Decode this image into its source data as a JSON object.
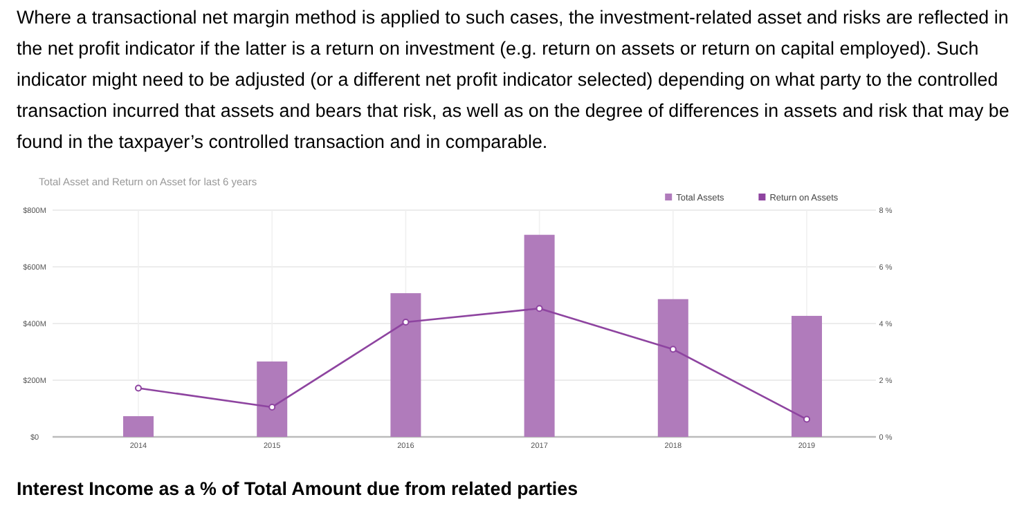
{
  "chart_data": {
    "type": "bar",
    "title": "Total Asset and Return on Asset  for last 6 years",
    "categories": [
      "2014",
      "2015",
      "2016",
      "2017",
      "2018",
      "2019"
    ],
    "series": [
      {
        "name": "Total Assets",
        "color": "#b07bbb",
        "values": [
          73,
          266,
          507,
          713,
          486,
          427
        ]
      },
      {
        "name": "Return on Assets",
        "type": "line",
        "axis": "y2",
        "color": "#8e44a0",
        "values": [
          1.72,
          1.05,
          4.05,
          4.53,
          3.09,
          0.62
        ]
      }
    ],
    "ylim": [
      0,
      800
    ],
    "yticks": [
      {
        "value": 0,
        "label": "$0"
      },
      {
        "value": 200,
        "label": "$200M"
      },
      {
        "value": 400,
        "label": "$400M"
      },
      {
        "value": 600,
        "label": "$600M"
      },
      {
        "value": 800,
        "label": "$800M"
      }
    ],
    "y2lim": [
      0,
      8
    ],
    "y2ticks": [
      {
        "value": 0,
        "label": "0 %"
      },
      {
        "value": 2,
        "label": "2 %"
      },
      {
        "value": 4,
        "label": "4 %"
      },
      {
        "value": 6,
        "label": "6 %"
      },
      {
        "value": 8,
        "label": "8 %"
      }
    ],
    "grid": true,
    "legend": "top right",
    "marker": "circle",
    "annotations": [
      "Where a transactional net margin method is applied to such cases, the investment-related asset and risks are reflected in the net profit indicator if the latter is a return on investment (e.g. return on assets or return on capital employed). Such indicator might need to be adjusted (or a different net profit indicator selected) depending on what party to the controlled transaction incurred that assets and bears that risk, as well as on the degree of differences in assets and risk that may be found in the taxpayer’s controlled transaction and in comparable.",
      "Interest Income as a % of Total Amount due from related parties"
    ]
  }
}
